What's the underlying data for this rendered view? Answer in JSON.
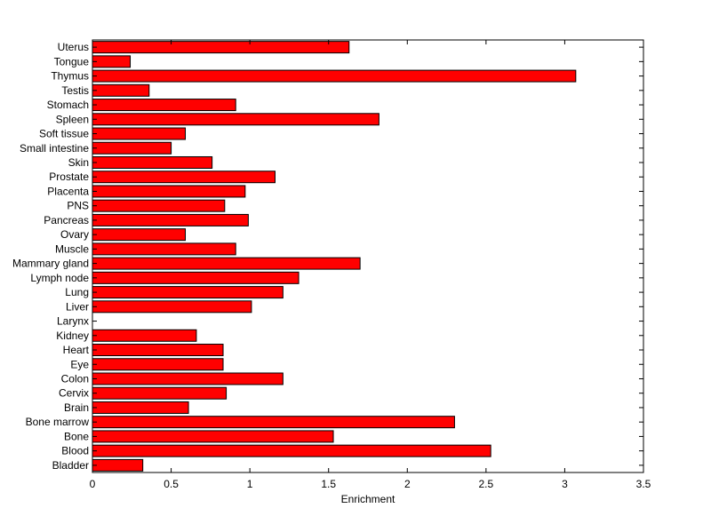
{
  "chart_data": {
    "type": "bar",
    "orientation": "horizontal",
    "title": "",
    "xlabel": "Enrichment",
    "ylabel": "",
    "xlim": [
      0,
      3.5
    ],
    "xticks": [
      "0",
      "0.5",
      "1",
      "1.5",
      "2",
      "2.5",
      "3",
      "3.5"
    ],
    "grid": false,
    "bar_color": "#ff0000",
    "categories": [
      "Uterus",
      "Tongue",
      "Thymus",
      "Testis",
      "Stomach",
      "Spleen",
      "Soft tissue",
      "Small intestine",
      "Skin",
      "Prostate",
      "Placenta",
      "PNS",
      "Pancreas",
      "Ovary",
      "Muscle",
      "Mammary gland",
      "Lymph node",
      "Lung",
      "Liver",
      "Larynx",
      "Kidney",
      "Heart",
      "Eye",
      "Colon",
      "Cervix",
      "Brain",
      "Bone marrow",
      "Bone",
      "Blood",
      "Bladder"
    ],
    "values": [
      1.63,
      0.24,
      3.07,
      0.36,
      0.91,
      1.82,
      0.59,
      0.5,
      0.76,
      1.16,
      0.97,
      0.84,
      0.99,
      0.59,
      0.91,
      1.7,
      1.31,
      1.21,
      1.01,
      0.0,
      0.66,
      0.83,
      0.83,
      1.21,
      0.85,
      0.61,
      2.3,
      1.53,
      2.53,
      0.32
    ]
  }
}
